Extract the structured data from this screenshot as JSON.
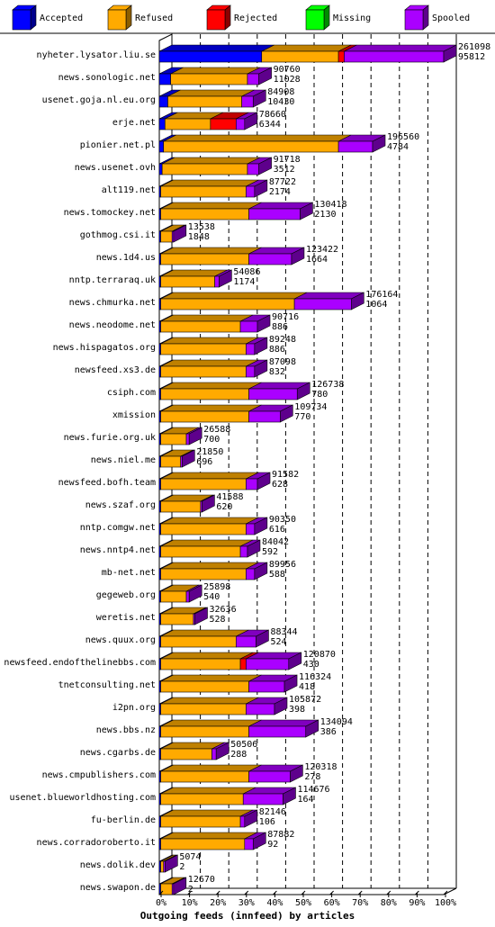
{
  "chart_data": {
    "type": "bar",
    "stacked": true,
    "orientation": "horizontal",
    "xlabel": "Outgoing feeds (innfeed) by articles",
    "xlim": [
      0,
      100
    ],
    "xticks": [
      "0%",
      "10%",
      "20%",
      "30%",
      "40%",
      "50%",
      "60%",
      "70%",
      "80%",
      "90%",
      "100%"
    ],
    "legend_position": "top",
    "series": [
      {
        "name": "Accepted",
        "color": "#0000ff"
      },
      {
        "name": "Refused",
        "color": "#ffaa00"
      },
      {
        "name": "Rejected",
        "color": "#ff0000"
      },
      {
        "name": "Missing",
        "color": "#00ff00"
      },
      {
        "name": "Spooled",
        "color": "#aa00ff"
      }
    ],
    "rows": [
      {
        "host": "nyheter.lysator.liu.se",
        "total": "261098",
        "spooled": "95812",
        "values": [
          36,
          27,
          2,
          0,
          35
        ]
      },
      {
        "host": "news.sonologic.net",
        "total": "90760",
        "spooled": "11028",
        "values": [
          4,
          27,
          0,
          0,
          4
        ]
      },
      {
        "host": "usenet.goja.nl.eu.org",
        "total": "84908",
        "spooled": "10430",
        "values": [
          3,
          26,
          0,
          0,
          4
        ]
      },
      {
        "host": "erje.net",
        "total": "78660",
        "spooled": "6344",
        "values": [
          2,
          16,
          9,
          0,
          3
        ]
      },
      {
        "host": "pionier.net.pl",
        "total": "196560",
        "spooled": "4784",
        "values": [
          1.5,
          61.5,
          0,
          0,
          12
        ]
      },
      {
        "host": "news.usenet.ovh",
        "total": "91718",
        "spooled": "3512",
        "values": [
          1,
          30,
          0,
          0,
          4
        ]
      },
      {
        "host": "alt119.net",
        "total": "87722",
        "spooled": "2174",
        "values": [
          0.5,
          30,
          0,
          0,
          3
        ]
      },
      {
        "host": "news.tomockey.net",
        "total": "130418",
        "spooled": "2130",
        "values": [
          0.5,
          31,
          0,
          0,
          18
        ]
      },
      {
        "host": "gothmog.csi.it",
        "total": "13538",
        "spooled": "1848",
        "values": [
          0.5,
          4,
          0,
          0,
          0.5
        ]
      },
      {
        "host": "news.1d4.us",
        "total": "123422",
        "spooled": "1664",
        "values": [
          0.5,
          31,
          0,
          0,
          15
        ]
      },
      {
        "host": "nntp.terraraq.uk",
        "total": "54086",
        "spooled": "1174",
        "values": [
          0.5,
          19,
          0,
          0,
          1.5
        ]
      },
      {
        "host": "news.chmurka.net",
        "total": "176164",
        "spooled": "1064",
        "values": [
          0.5,
          47,
          0,
          0,
          20
        ]
      },
      {
        "host": "news.neodome.net",
        "total": "90716",
        "spooled": "886",
        "values": [
          0.5,
          28,
          0,
          0,
          6
        ]
      },
      {
        "host": "news.hispagatos.org",
        "total": "89248",
        "spooled": "886",
        "values": [
          0.5,
          30,
          0,
          0,
          3
        ]
      },
      {
        "host": "newsfeed.xs3.de",
        "total": "87098",
        "spooled": "832",
        "values": [
          0.5,
          30,
          0,
          0,
          3
        ]
      },
      {
        "host": "csiph.com",
        "total": "126738",
        "spooled": "780",
        "values": [
          0.5,
          31,
          0,
          0,
          17
        ]
      },
      {
        "host": "xmission",
        "total": "109734",
        "spooled": "770",
        "values": [
          0.5,
          31,
          0,
          0,
          11
        ]
      },
      {
        "host": "news.furie.org.uk",
        "total": "26588",
        "spooled": "700",
        "values": [
          0.5,
          9,
          0,
          0,
          1
        ]
      },
      {
        "host": "news.niel.me",
        "total": "21850",
        "spooled": "696",
        "values": [
          0.5,
          7,
          0,
          0,
          0.5
        ]
      },
      {
        "host": "newsfeed.bofh.team",
        "total": "91582",
        "spooled": "628",
        "values": [
          0.5,
          30,
          0,
          0,
          4
        ]
      },
      {
        "host": "news.szaf.org",
        "total": "41588",
        "spooled": "620",
        "values": [
          0.5,
          14,
          0,
          0,
          0.5
        ]
      },
      {
        "host": "nntp.comgw.net",
        "total": "90350",
        "spooled": "616",
        "values": [
          0.5,
          30,
          0,
          0,
          3
        ]
      },
      {
        "host": "news.nntp4.net",
        "total": "84042",
        "spooled": "592",
        "values": [
          0.5,
          28,
          0,
          0,
          2.5
        ]
      },
      {
        "host": "mb-net.net",
        "total": "89956",
        "spooled": "588",
        "values": [
          0.5,
          30,
          0,
          0,
          3
        ]
      },
      {
        "host": "gegeweb.org",
        "total": "25898",
        "spooled": "540",
        "values": [
          0.5,
          9,
          0,
          0,
          1
        ]
      },
      {
        "host": "weretis.net",
        "total": "32636",
        "spooled": "528",
        "values": [
          0.5,
          11.5,
          0,
          0,
          0.5
        ]
      },
      {
        "host": "news.quux.org",
        "total": "88344",
        "spooled": "524",
        "values": [
          0.5,
          26.5,
          0,
          0,
          7
        ]
      },
      {
        "host": "newsfeed.endofthelinebbs.com",
        "total": "120870",
        "spooled": "430",
        "values": [
          0.5,
          28,
          2,
          0,
          15
        ]
      },
      {
        "host": "tnetconsulting.net",
        "total": "116324",
        "spooled": "418",
        "values": [
          0.5,
          31,
          0,
          0,
          12.5
        ]
      },
      {
        "host": "i2pn.org",
        "total": "105872",
        "spooled": "398",
        "values": [
          0.5,
          30,
          0,
          0,
          10
        ]
      },
      {
        "host": "news.bbs.nz",
        "total": "134094",
        "spooled": "386",
        "values": [
          0.5,
          31,
          0,
          0,
          20
        ]
      },
      {
        "host": "news.cgarbs.de",
        "total": "50506",
        "spooled": "288",
        "values": [
          0.5,
          18,
          0,
          0,
          1.5
        ]
      },
      {
        "host": "news.cmpublishers.com",
        "total": "120318",
        "spooled": "278",
        "values": [
          0.5,
          31,
          0,
          0,
          14.5
        ]
      },
      {
        "host": "usenet.blueworldhosting.com",
        "total": "114676",
        "spooled": "164",
        "values": [
          0.5,
          29,
          0,
          0,
          14
        ]
      },
      {
        "host": "fu-berlin.de",
        "total": "82146",
        "spooled": "106",
        "values": [
          0.5,
          28,
          0,
          0,
          1.5
        ]
      },
      {
        "host": "news.corradoroberto.it",
        "total": "87882",
        "spooled": "92",
        "values": [
          0.5,
          29.5,
          0,
          0,
          3
        ]
      },
      {
        "host": "news.dolik.dev",
        "total": "5074",
        "spooled": "2",
        "values": [
          0.5,
          1,
          0,
          0,
          0.5
        ]
      },
      {
        "host": "news.swapon.de",
        "total": "12670",
        "spooled": "2",
        "values": [
          0.5,
          4,
          0,
          0,
          0.5
        ]
      }
    ]
  }
}
